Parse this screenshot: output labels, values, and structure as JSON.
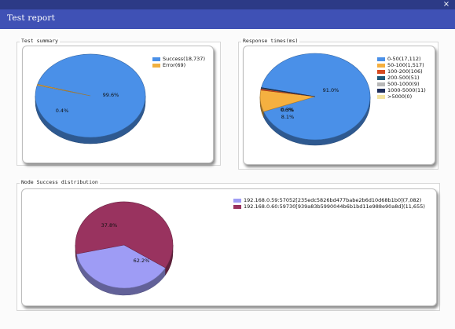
{
  "window": {
    "title": "Test report",
    "close_glyph": "×"
  },
  "sections": {
    "summary": {
      "label": "Test summary"
    },
    "response": {
      "label": "Response times(ms)"
    },
    "node": {
      "label": "Node Success distribution"
    }
  },
  "chart_data": [
    {
      "type": "pie",
      "title": "Test summary",
      "categories": [
        "Success",
        "Error"
      ],
      "values": [
        18737,
        69
      ],
      "legend": [
        "Success(18,737)",
        "Error(69)"
      ],
      "slice_labels": [
        "99.6%",
        "0.4%"
      ],
      "colors": [
        "#4a90e8",
        "#f0b040"
      ],
      "legend_position": "top-right"
    },
    {
      "type": "pie",
      "title": "Response times(ms)",
      "categories": [
        "0-50",
        "50-100",
        "100-200",
        "200-500",
        "500-1000",
        "1000-5000",
        ">5000"
      ],
      "values": [
        17112,
        1517,
        106,
        51,
        9,
        11,
        0
      ],
      "legend": [
        "0-50(17,112)",
        "50-100(1,517)",
        "100-200(106)",
        "200-500(51)",
        "500-1000(9)",
        "1000-5000(11)",
        ">5000(0)"
      ],
      "slice_labels": [
        "91.0%",
        "8.1%",
        "0.6%",
        "0.3%",
        "",
        "",
        ""
      ],
      "colors": [
        "#4a90e8",
        "#f5b040",
        "#d64a20",
        "#1f5a7a",
        "#b8b8b8",
        "#1e2d5a",
        "#f3e3a0"
      ],
      "legend_position": "top-right"
    },
    {
      "type": "pie",
      "title": "Node Success distribution",
      "categories": [
        "192.168.0.59:57052",
        "192.168.0.60:59730"
      ],
      "values": [
        7082,
        11655
      ],
      "legend": [
        "192.168.0.59:57052[235edc5826bd477babe2b6d10d68b1b0](7,082)",
        "192.168.0.60:59730[939a83b5990044b6b1bd11e988e90a8d](11,655)"
      ],
      "slice_labels": [
        "37.8%",
        "62.2%"
      ],
      "colors": [
        "#9e9cf5",
        "#99335f"
      ],
      "legend_position": "top-right"
    }
  ]
}
